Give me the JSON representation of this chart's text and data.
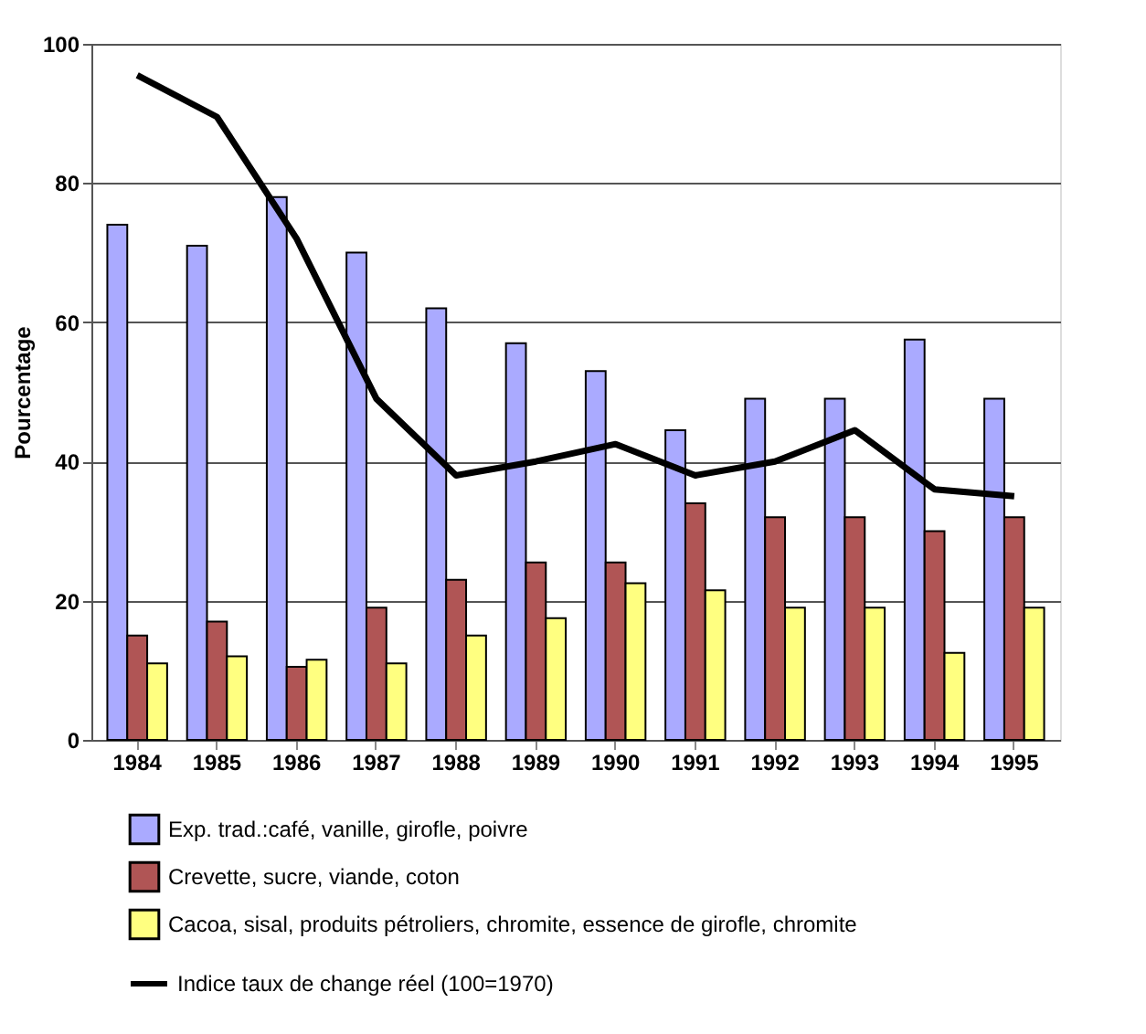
{
  "chart_data": {
    "type": "bar",
    "ylabel": "Pourcentage",
    "categories": [
      "1984",
      "1985",
      "1986",
      "1987",
      "1988",
      "1989",
      "1990",
      "1991",
      "1992",
      "1993",
      "1994",
      "1995"
    ],
    "series": [
      {
        "name": "Exp. trad.:café, vanille, girofle, poivre",
        "color": "#aaaaff",
        "values": [
          74,
          71,
          78,
          70,
          62,
          57,
          53,
          44.5,
          49,
          49,
          57.5,
          49
        ]
      },
      {
        "name": "Crevette, sucre, viande, coton",
        "color": "#b05555",
        "values": [
          15,
          17,
          10.5,
          19,
          23,
          25.5,
          25.5,
          34,
          32,
          32,
          30,
          32
        ]
      },
      {
        "name": "Cacoa, sisal, produits pétroliers, chromite, essence de girofle, chromite",
        "color": "#ffff80",
        "values": [
          11,
          12,
          11.5,
          11,
          15,
          17.5,
          22.5,
          21.5,
          19,
          19,
          12.5,
          19
        ]
      },
      {
        "name": "Indice taux de change réel (100=1970)",
        "color": "#000000",
        "type": "line",
        "values": [
          95.5,
          89.5,
          72,
          49,
          38,
          40,
          42.5,
          38,
          40,
          44.5,
          36,
          35
        ]
      }
    ],
    "ylim": [
      0,
      100
    ],
    "yticks": [
      0,
      20,
      40,
      60,
      80,
      100
    ],
    "grid": "y",
    "legend": "bottom",
    "marker": "none",
    "line_style": "solid"
  }
}
